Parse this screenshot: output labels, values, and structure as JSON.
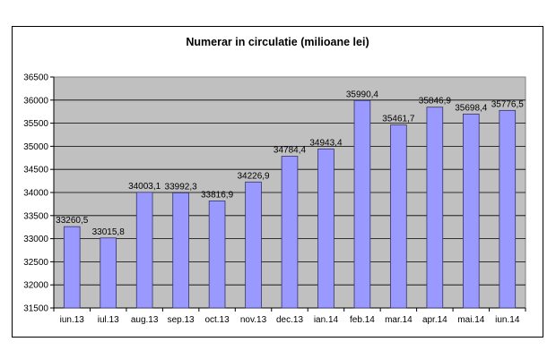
{
  "chart_data": {
    "type": "bar",
    "title": "Numerar in circulatie (milioane lei)",
    "xlabel": "",
    "ylabel": "",
    "categories": [
      "iun.13",
      "iul.13",
      "aug.13",
      "sep.13",
      "oct.13",
      "nov.13",
      "dec.13",
      "ian.14",
      "feb.14",
      "mar.14",
      "apr.14",
      "mai.14",
      "iun.14"
    ],
    "values": [
      33260.5,
      33015.8,
      34003.1,
      33992.3,
      33816.9,
      34226.9,
      34784.4,
      34943.4,
      35990.4,
      35461.7,
      35846.9,
      35698.4,
      35776.5
    ],
    "value_labels": [
      "33260,5",
      "33015,8",
      "34003,1",
      "33992,3",
      "33816,9",
      "34226,9",
      "34784,4",
      "34943,4",
      "35990,4",
      "35461,7",
      "35846,9",
      "35698,4",
      "35776,5"
    ],
    "ylim": [
      31500,
      36500
    ],
    "yticks": [
      31500,
      32000,
      32500,
      33000,
      33500,
      34000,
      34500,
      35000,
      35500,
      36000,
      36500
    ],
    "grid": true,
    "legend": "none",
    "colors": {
      "bar_fill": "#9999FF",
      "bar_stroke": "#333366",
      "plot_bg": "#C0C0C0",
      "grid": "#000000"
    }
  }
}
